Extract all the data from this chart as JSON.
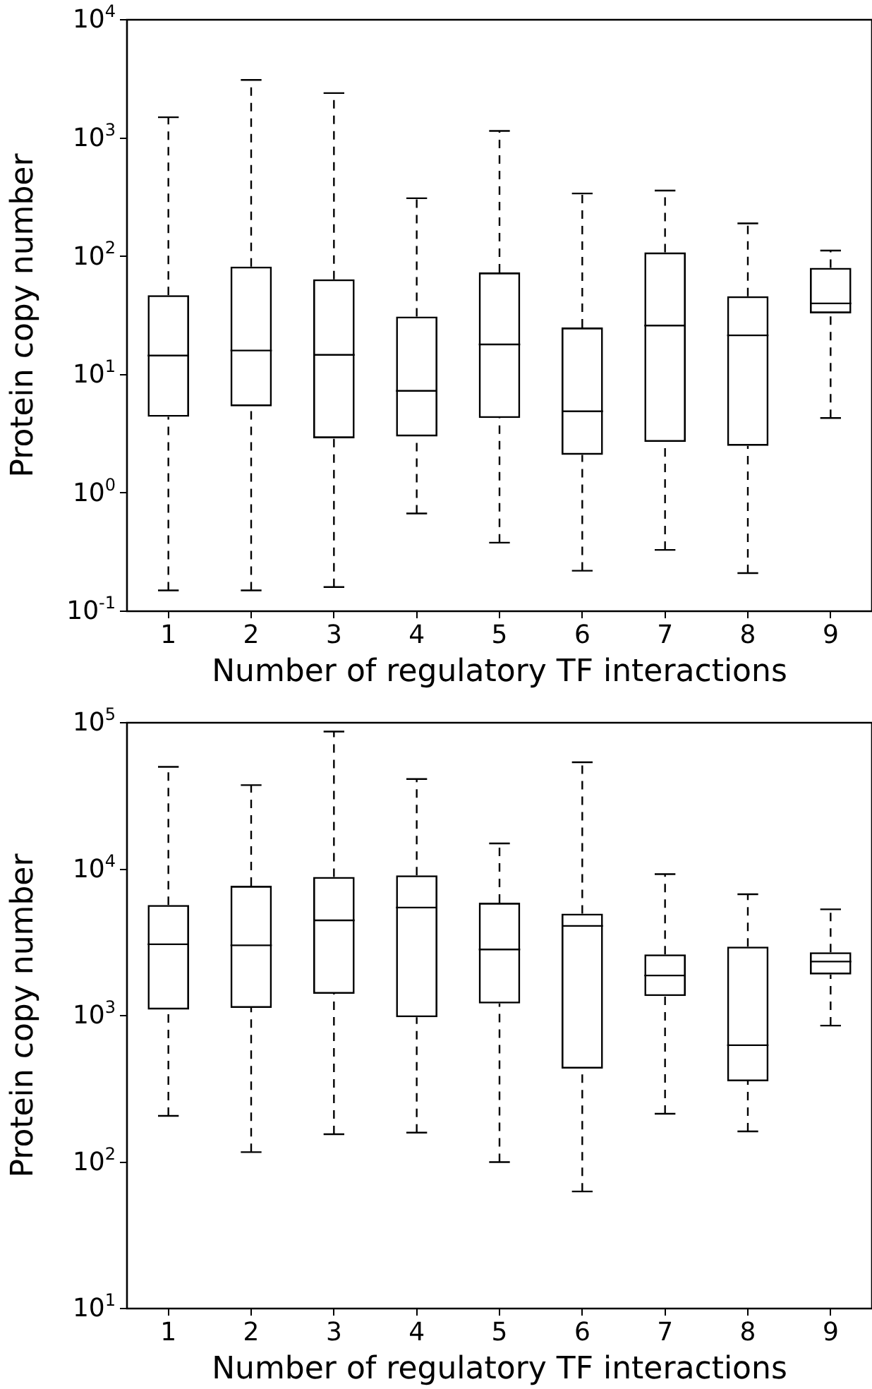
{
  "chart_data": [
    {
      "type": "box",
      "xlabel": "Number of regulatory TF interactions",
      "ylabel": "Protein copy number",
      "categories": [
        "1",
        "2",
        "3",
        "4",
        "5",
        "6",
        "7",
        "8",
        "9"
      ],
      "log": true,
      "grid": false,
      "legend": false,
      "ylim": [
        0.1,
        10000
      ],
      "yticks": [
        {
          "value": 0.1,
          "label": "10$^{-1}$"
        },
        {
          "value": 1,
          "label": "10$^{0}$"
        },
        {
          "value": 10,
          "label": "10$^{1}$"
        },
        {
          "value": 100,
          "label": "10$^{2}$"
        },
        {
          "value": 1000,
          "label": "10$^{3}$"
        },
        {
          "value": 10000,
          "label": "10$^{4}$"
        }
      ],
      "series": [
        {
          "color": "#000000",
          "boxes": [
            {
              "low": 0.15,
              "q1": 4.4,
              "median": 14.5,
              "q3": 47,
              "high": 1500
            },
            {
              "low": 0.15,
              "q1": 5.4,
              "median": 16,
              "q3": 82,
              "high": 3100
            },
            {
              "low": 0.16,
              "q1": 2.9,
              "median": 14.7,
              "q3": 64,
              "high": 2400
            },
            {
              "low": 0.67,
              "q1": 3.0,
              "median": 7.3,
              "q3": 31,
              "high": 310
            },
            {
              "low": 0.38,
              "q1": 4.3,
              "median": 18,
              "q3": 73,
              "high": 1150
            },
            {
              "low": 0.22,
              "q1": 2.1,
              "median": 4.9,
              "q3": 25,
              "high": 340
            },
            {
              "low": 0.33,
              "q1": 2.7,
              "median": 26,
              "q3": 108,
              "high": 360
            },
            {
              "low": 0.21,
              "q1": 2.5,
              "median": 21.5,
              "q3": 46,
              "high": 190
            },
            {
              "low": 4.3,
              "q1": 33,
              "median": 40,
              "q3": 80,
              "high": 112
            }
          ]
        }
      ]
    },
    {
      "type": "box",
      "xlabel": "Number of regulatory TF interactions",
      "ylabel": "Protein copy number",
      "categories": [
        "1",
        "2",
        "3",
        "4",
        "5",
        "6",
        "7",
        "8",
        "9"
      ],
      "log": true,
      "grid": false,
      "legend": false,
      "ylim": [
        10,
        100000
      ],
      "yticks": [
        {
          "value": 10,
          "label": "10$^{1}$"
        },
        {
          "value": 100,
          "label": "10$^{2}$"
        },
        {
          "value": 1000,
          "label": "10$^{3}$"
        },
        {
          "value": 10000,
          "label": "10$^{4}$"
        },
        {
          "value": 100000,
          "label": "10$^{5}$"
        }
      ],
      "series": [
        {
          "color": "#000000",
          "boxes": [
            {
              "low": 207,
              "q1": 1100,
              "median": 3070,
              "q3": 5700,
              "high": 50000
            },
            {
              "low": 117,
              "q1": 1130,
              "median": 3020,
              "q3": 7700,
              "high": 37500
            },
            {
              "low": 155,
              "q1": 1410,
              "median": 4470,
              "q3": 8850,
              "high": 87000
            },
            {
              "low": 159,
              "q1": 975,
              "median": 5470,
              "q3": 9080,
              "high": 41300
            },
            {
              "low": 100,
              "q1": 1210,
              "median": 2830,
              "q3": 5900,
              "high": 15000
            },
            {
              "low": 63,
              "q1": 435,
              "median": 4100,
              "q3": 4970,
              "high": 53700
            },
            {
              "low": 214,
              "q1": 1360,
              "median": 1880,
              "q3": 2620,
              "high": 9250
            },
            {
              "low": 162,
              "q1": 356,
              "median": 628,
              "q3": 2960,
              "high": 6740
            },
            {
              "low": 855,
              "q1": 1910,
              "median": 2340,
              "q3": 2710,
              "high": 5320
            }
          ]
        }
      ]
    }
  ]
}
